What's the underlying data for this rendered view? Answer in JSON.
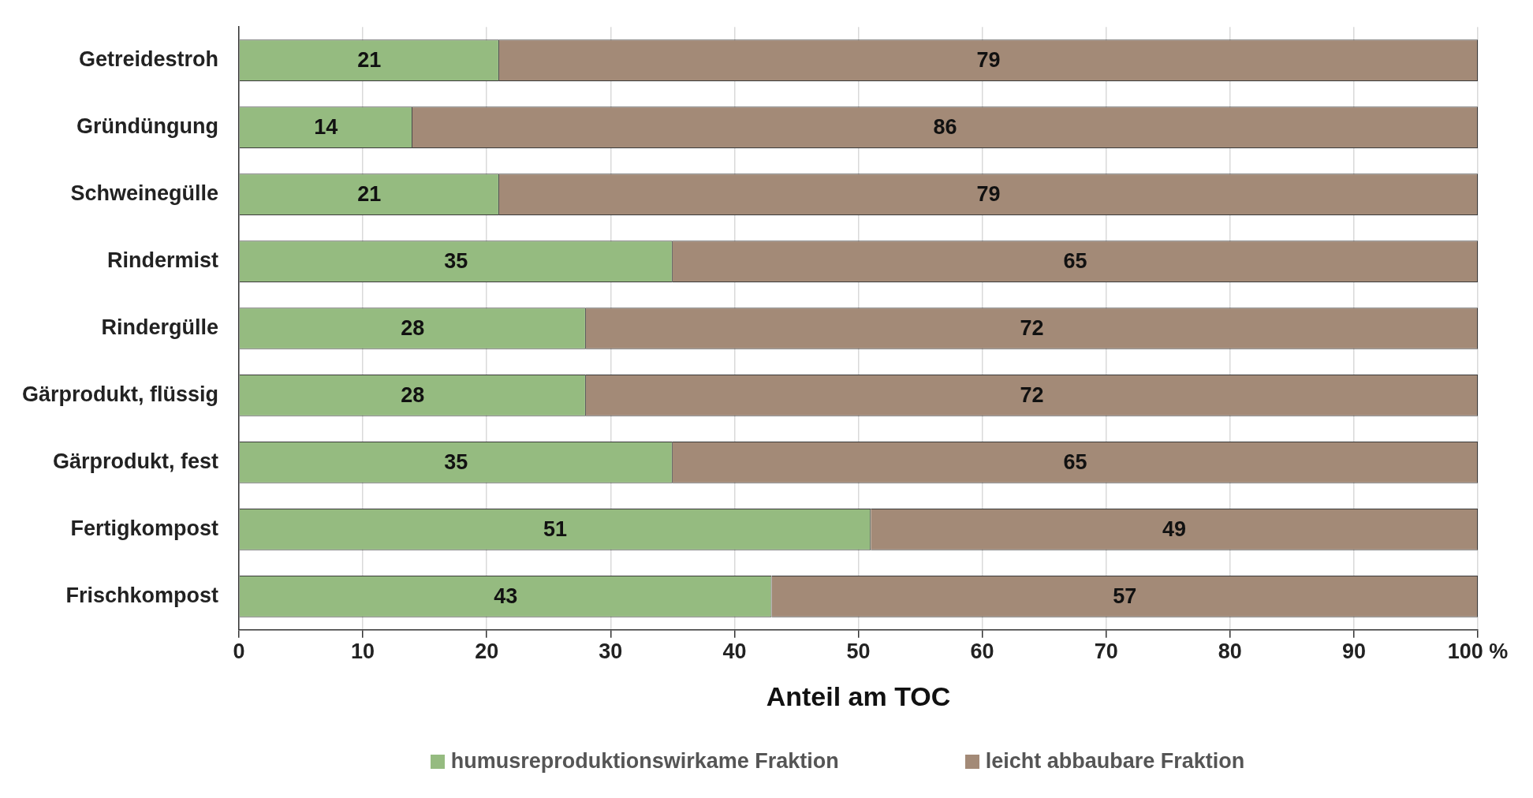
{
  "chart_data": {
    "type": "bar",
    "orientation": "horizontal",
    "stacked": true,
    "xlabel": "Anteil am TOC",
    "categories": [
      "Getreidestroh",
      "Gründüngung",
      "Schweinegülle",
      "Rindermist",
      "Rindergülle",
      "Gärprodukt, flüssig",
      "Gärprodukt, fest",
      "Fertigkompost",
      "Frischkompost"
    ],
    "series": [
      {
        "name": "humusreproduktionswirkame Fraktion",
        "color": "#95bb80",
        "values": [
          21,
          14,
          21,
          35,
          28,
          28,
          35,
          51,
          43
        ]
      },
      {
        "name": "leicht abbaubare Fraktion",
        "color": "#a38a77",
        "values": [
          79,
          86,
          79,
          65,
          72,
          72,
          65,
          49,
          57
        ]
      }
    ],
    "xlim": [
      0,
      100
    ],
    "xticks": [
      0,
      10,
      20,
      30,
      40,
      50,
      60,
      70,
      80,
      90,
      {
        "value": 100,
        "label": "100 %"
      }
    ],
    "grid": "x",
    "legend": "bottom",
    "data_labels": true
  }
}
